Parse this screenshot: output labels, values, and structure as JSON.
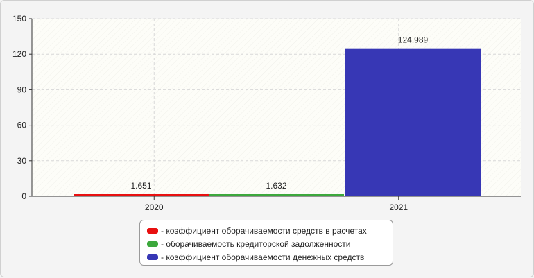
{
  "chart_data": {
    "type": "bar",
    "categories": [
      "2020",
      "2021"
    ],
    "ylim": [
      0,
      150
    ],
    "yticks": [
      0,
      30,
      60,
      90,
      120,
      150
    ],
    "grid": true,
    "legend_placement": "bottom-center",
    "series": [
      {
        "name": "коэффициент оборачиваемости средств в расчетах",
        "color": "#e81010",
        "category": "2020",
        "value": 1.651,
        "label": "1.651"
      },
      {
        "name": "оборачиваемость кредиторской задолженности",
        "color": "#3ca83c",
        "category": "2020",
        "value": 1.632,
        "label": "1.632"
      },
      {
        "name": "коэффициент оборачиваемости денежных средств",
        "color": "#3737b5",
        "category": "2021",
        "value": 124.989,
        "label": "124.989"
      }
    ]
  },
  "legend": {
    "items": [
      {
        "text": "- коэффициент оборачиваемости средств в расчетах",
        "color": "#e81010"
      },
      {
        "text": "- оборачиваемость кредиторской задолженности",
        "color": "#3ca83c"
      },
      {
        "text": "- коэффициент оборачиваемости денежных средств",
        "color": "#3737b5"
      }
    ]
  }
}
